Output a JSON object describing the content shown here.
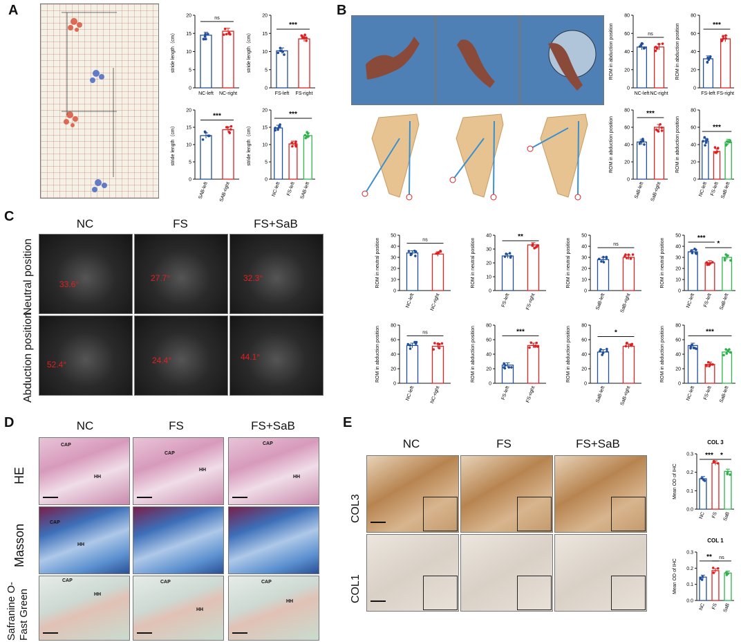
{
  "panels": {
    "A": "A",
    "B": "B",
    "C": "C",
    "D": "D",
    "E": "E"
  },
  "colors": {
    "blue": "#1f4e9c",
    "red": "#e02020",
    "green": "#2db34a"
  },
  "panelC": {
    "cols": [
      "NC",
      "FS",
      "FS+SaB"
    ],
    "rows": [
      "Neutral position",
      "Abduction position"
    ],
    "angles": [
      [
        "33.6°",
        "27.7°",
        "32.3°"
      ],
      [
        "52.4°",
        "24.4°",
        "44.1°"
      ]
    ]
  },
  "panelD": {
    "cols": [
      "NC",
      "FS",
      "FS+SaB"
    ],
    "rows": [
      "HE",
      "Masson",
      "Safranine O-\nFast Green"
    ],
    "cap": "CAP",
    "hh": "HH"
  },
  "panelE": {
    "cols": [
      "NC",
      "FS",
      "FS+SaB"
    ],
    "rows": [
      "COL3",
      "COL1"
    ]
  },
  "chart_data": [
    {
      "id": "A1",
      "type": "bar",
      "ylabel": "stride length（cm）",
      "ylim": [
        0,
        20
      ],
      "yticks": [
        0,
        5,
        10,
        15,
        20
      ],
      "categories": [
        "NC-left",
        "NC-right"
      ],
      "values": [
        14.5,
        15.6
      ],
      "sig": [
        {
          "text": "ns",
          "from": 0,
          "to": 1
        }
      ]
    },
    {
      "id": "A2",
      "type": "bar",
      "ylabel": "stride length（cm）",
      "ylim": [
        0,
        20
      ],
      "yticks": [
        0,
        5,
        10,
        15,
        20
      ],
      "categories": [
        "FS-left",
        "FS-right"
      ],
      "values": [
        10.2,
        13.5
      ],
      "sig": [
        {
          "text": "***",
          "from": 0,
          "to": 1
        }
      ]
    },
    {
      "id": "A3",
      "type": "bar",
      "ylabel": "stride length（cm）",
      "ylim": [
        0,
        20
      ],
      "yticks": [
        0,
        5,
        10,
        15,
        20
      ],
      "categories": [
        "SAB-left",
        "SAB-right"
      ],
      "values": [
        12.6,
        14.3
      ],
      "sig": [
        {
          "text": "***",
          "from": 0,
          "to": 1
        }
      ]
    },
    {
      "id": "A4",
      "type": "bar",
      "ylabel": "stride length（cm）",
      "ylim": [
        0,
        20
      ],
      "yticks": [
        0,
        5,
        10,
        15,
        20
      ],
      "categories": [
        "NC-left",
        "FS-left",
        "SAB-left"
      ],
      "values": [
        14.8,
        10.2,
        12.6
      ],
      "sig": [
        {
          "text": "***",
          "from": 0,
          "to": 2
        }
      ]
    },
    {
      "id": "B1",
      "type": "bar",
      "ylabel": "ROM in abduction position",
      "ylim": [
        0,
        80
      ],
      "yticks": [
        0,
        20,
        40,
        60,
        80
      ],
      "categories": [
        "NC-left",
        "NC-right"
      ],
      "values": [
        45,
        45
      ],
      "sig": [
        {
          "text": "ns",
          "from": 0,
          "to": 1
        }
      ]
    },
    {
      "id": "B2",
      "type": "bar",
      "ylabel": "ROM in abduction position",
      "ylim": [
        0,
        80
      ],
      "yticks": [
        0,
        20,
        40,
        60,
        80
      ],
      "categories": [
        "FS-left",
        "FS-right"
      ],
      "values": [
        32,
        54
      ],
      "sig": [
        {
          "text": "***",
          "from": 0,
          "to": 1
        }
      ]
    },
    {
      "id": "B3",
      "type": "bar",
      "ylabel": "ROM in abduction position",
      "ylim": [
        0,
        80
      ],
      "yticks": [
        0,
        20,
        40,
        60,
        80
      ],
      "categories": [
        "SaB-left",
        "SaB-right"
      ],
      "values": [
        43,
        60
      ],
      "sig": [
        {
          "text": "***",
          "from": 0,
          "to": 1
        }
      ]
    },
    {
      "id": "B4",
      "type": "bar",
      "ylabel": "ROM in abduction position",
      "ylim": [
        0,
        80
      ],
      "yticks": [
        0,
        20,
        40,
        60,
        80
      ],
      "categories": [
        "NC-left",
        "FS-left",
        "SaB-left"
      ],
      "values": [
        44,
        32,
        43
      ],
      "sig": [
        {
          "text": "***",
          "from": 0,
          "to": 2
        }
      ]
    },
    {
      "id": "C1",
      "type": "bar",
      "ylabel": "ROM in neutral position",
      "ylim": [
        0,
        50
      ],
      "yticks": [
        0,
        10,
        20,
        30,
        40,
        50
      ],
      "categories": [
        "NC-left",
        "NC-right"
      ],
      "values": [
        34,
        33
      ],
      "sig": [
        {
          "text": "ns",
          "from": 0,
          "to": 1
        }
      ]
    },
    {
      "id": "C2",
      "type": "bar",
      "ylabel": "ROM in neutral position",
      "ylim": [
        0,
        40
      ],
      "yticks": [
        0,
        10,
        20,
        30,
        40
      ],
      "categories": [
        "FS-left",
        "FS-right"
      ],
      "values": [
        25,
        33
      ],
      "sig": [
        {
          "text": "**",
          "from": 0,
          "to": 1
        }
      ]
    },
    {
      "id": "C3",
      "type": "bar",
      "ylabel": "ROM in neutral position",
      "ylim": [
        0,
        50
      ],
      "yticks": [
        0,
        10,
        20,
        30,
        40,
        50
      ],
      "categories": [
        "SaB-left",
        "SaB-right"
      ],
      "values": [
        28,
        30
      ],
      "sig": [
        {
          "text": "ns",
          "from": 0,
          "to": 1
        }
      ]
    },
    {
      "id": "C4",
      "type": "bar",
      "ylabel": "ROM in neutral position",
      "ylim": [
        0,
        50
      ],
      "yticks": [
        0,
        10,
        20,
        30,
        40,
        50
      ],
      "categories": [
        "NC-left",
        "FS-left",
        "SaB-left"
      ],
      "values": [
        35,
        25,
        30
      ],
      "sig": [
        {
          "text": "***",
          "from": 0,
          "to": 1
        },
        {
          "text": "*",
          "from": 1,
          "to": 2
        }
      ]
    },
    {
      "id": "C5",
      "type": "bar",
      "ylabel": "ROM in abduction position",
      "ylim": [
        0,
        80
      ],
      "yticks": [
        0,
        20,
        40,
        60,
        80
      ],
      "categories": [
        "NC-left",
        "NC-right"
      ],
      "values": [
        52,
        51
      ],
      "sig": [
        {
          "text": "ns",
          "from": 0,
          "to": 1
        }
      ]
    },
    {
      "id": "C6",
      "type": "bar",
      "ylabel": "ROM in abduction position",
      "ylim": [
        0,
        80
      ],
      "yticks": [
        0,
        20,
        40,
        60,
        80
      ],
      "categories": [
        "FS-left",
        "FS-right"
      ],
      "values": [
        25,
        52
      ],
      "sig": [
        {
          "text": "***",
          "from": 0,
          "to": 1
        }
      ]
    },
    {
      "id": "C7",
      "type": "bar",
      "ylabel": "ROM in abduction position",
      "ylim": [
        0,
        80
      ],
      "yticks": [
        0,
        20,
        40,
        60,
        80
      ],
      "categories": [
        "SaB-left",
        "SaB-right"
      ],
      "values": [
        43,
        51
      ],
      "sig": [
        {
          "text": "*",
          "from": 0,
          "to": 1
        }
      ]
    },
    {
      "id": "C8",
      "type": "bar",
      "ylabel": "ROM in abduction position",
      "ylim": [
        0,
        80
      ],
      "yticks": [
        0,
        20,
        40,
        60,
        80
      ],
      "categories": [
        "NC-left",
        "FS-left",
        "SaB-left"
      ],
      "values": [
        52,
        26,
        43
      ],
      "sig": [
        {
          "text": "***",
          "from": 0,
          "to": 2
        }
      ]
    },
    {
      "id": "E1",
      "type": "bar",
      "title": "COL 3",
      "ylabel": "Mean OD of IHC",
      "ylim": [
        0,
        0.3
      ],
      "yticks": [
        0.0,
        0.1,
        0.2,
        0.3
      ],
      "categories": [
        "NC",
        "FS",
        "SaB"
      ],
      "values": [
        0.165,
        0.25,
        0.205
      ],
      "sig": [
        {
          "text": "***",
          "from": 0,
          "to": 1
        },
        {
          "text": "*",
          "from": 1,
          "to": 2
        }
      ]
    },
    {
      "id": "E2",
      "type": "bar",
      "title": "COL 1",
      "ylabel": "Mean OD of IHC",
      "ylim": [
        0,
        0.3
      ],
      "yticks": [
        0.0,
        0.1,
        0.2,
        0.3
      ],
      "categories": [
        "NC",
        "FS",
        "SaB"
      ],
      "values": [
        0.145,
        0.185,
        0.17
      ],
      "sig": [
        {
          "text": "**",
          "from": 0,
          "to": 1
        },
        {
          "text": "ns",
          "from": 1,
          "to": 2
        }
      ]
    }
  ]
}
